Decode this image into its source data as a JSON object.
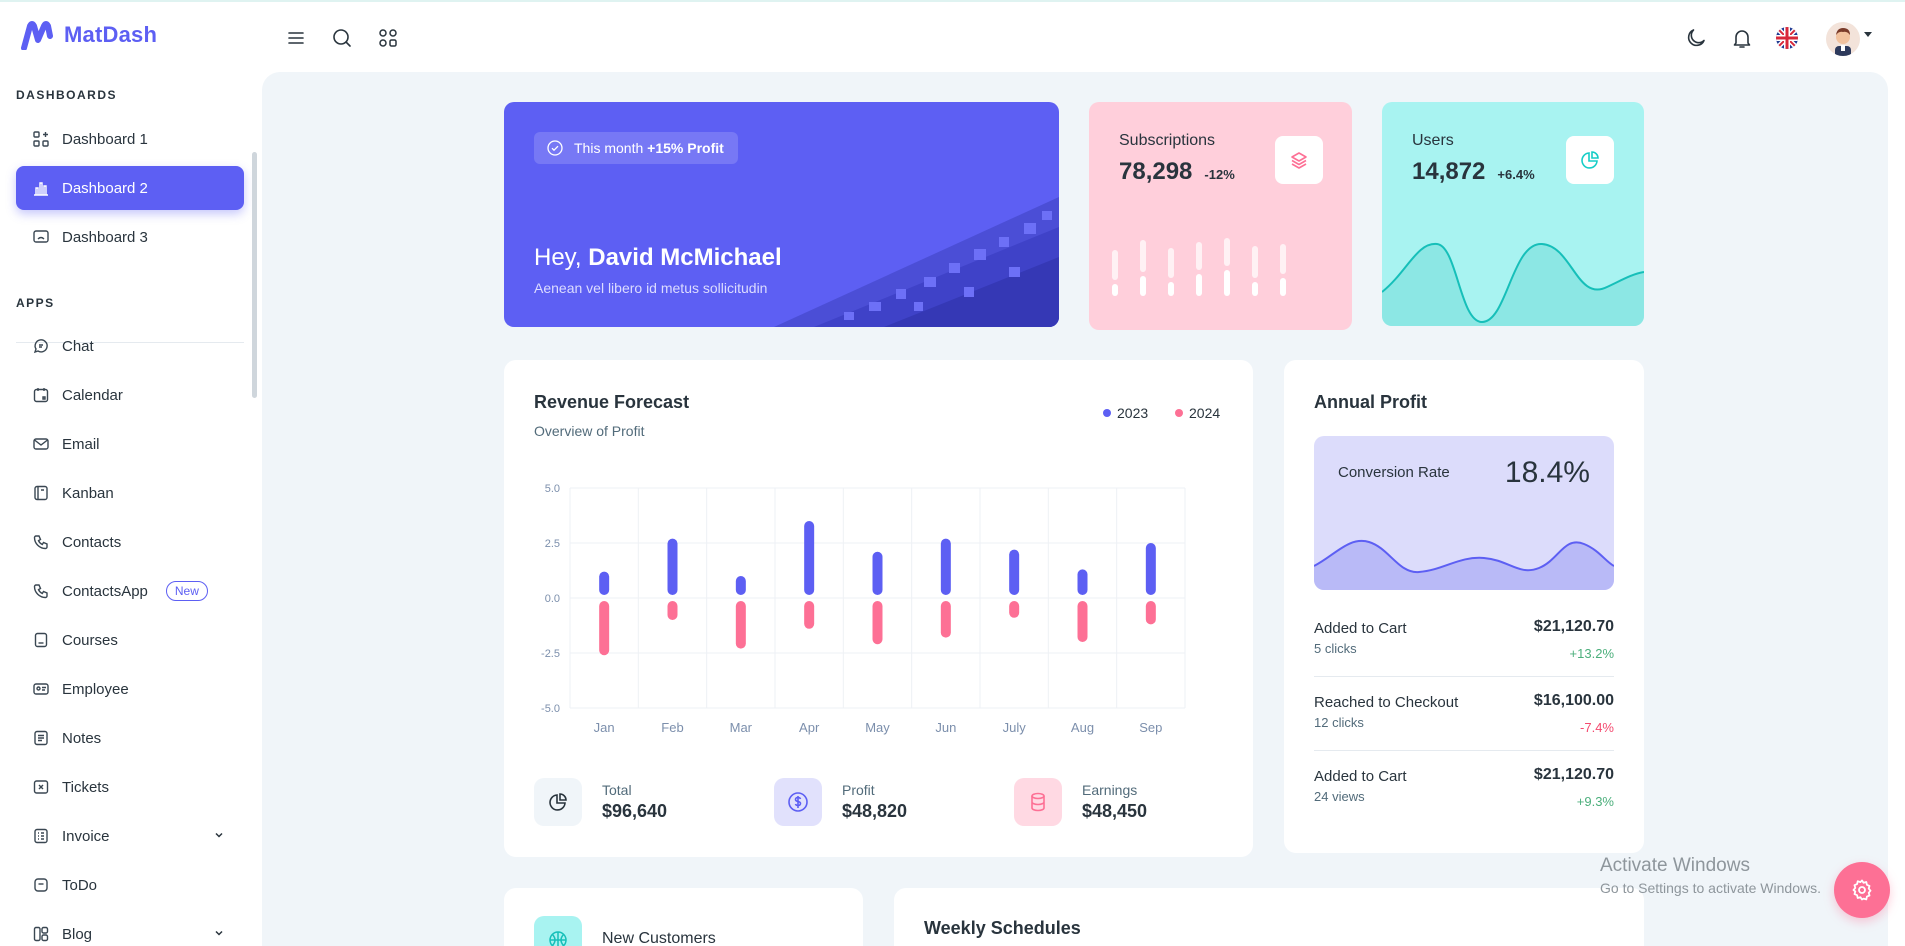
{
  "app": {
    "name": "MatDash"
  },
  "colors": {
    "primary": "#5d5ff3",
    "secondary": "#fd7095",
    "success": "#4caf7c",
    "danger": "#f44a6f",
    "subs_bg": "#ffcfdb",
    "users_bg": "#a8f3f1"
  },
  "header": {
    "icons": [
      "menu-icon",
      "search-icon",
      "apps-icon",
      "moon-icon",
      "bell-icon",
      "uk-flag-icon",
      "avatar"
    ]
  },
  "sidebar": {
    "dashboards_heading": "DASHBOARDS",
    "apps_heading": "APPS",
    "dashboards": [
      {
        "label": "Dashboard 1",
        "icon": "layout-icon"
      },
      {
        "label": "Dashboard 2",
        "icon": "chart-bar-icon",
        "active": true
      },
      {
        "label": "Dashboard 3",
        "icon": "device-desktop-icon"
      }
    ],
    "apps": [
      {
        "label": "Chat",
        "icon": "message-icon"
      },
      {
        "label": "Calendar",
        "icon": "calendar-icon"
      },
      {
        "label": "Email",
        "icon": "mail-icon"
      },
      {
        "label": "Kanban",
        "icon": "notebook-icon"
      },
      {
        "label": "Contacts",
        "icon": "phone-icon"
      },
      {
        "label": "ContactsApp",
        "icon": "phone-icon",
        "badge": "New"
      },
      {
        "label": "Courses",
        "icon": "book-icon"
      },
      {
        "label": "Employee",
        "icon": "id-badge-icon"
      },
      {
        "label": "Notes",
        "icon": "note-icon"
      },
      {
        "label": "Tickets",
        "icon": "ticket-icon"
      },
      {
        "label": "Invoice",
        "icon": "file-invoice-icon",
        "expandable": true
      },
      {
        "label": "ToDo",
        "icon": "checkbox-icon"
      },
      {
        "label": "Blog",
        "icon": "blog-icon",
        "expandable": true
      }
    ]
  },
  "welcome": {
    "pill_prefix": "This month",
    "pill_bold": "+15% Profit",
    "greeting": "Hey,",
    "name": "David McMichael",
    "subtitle": "Aenean vel libero id metus sollicitudin"
  },
  "subscriptions": {
    "title": "Subscriptions",
    "value": "78,298",
    "change": "-12%",
    "icon": "stack-icon"
  },
  "users": {
    "title": "Users",
    "value": "14,872",
    "change": "+6.4%",
    "icon": "chart-pie-icon"
  },
  "revenue": {
    "title": "Revenue Forecast",
    "subtitle": "Overview of Profit",
    "totals": [
      {
        "label": "Total",
        "value": "$96,640",
        "icon": "chart-pie-icon"
      },
      {
        "label": "Profit",
        "value": "$48,820",
        "icon": "dollar-circle-icon"
      },
      {
        "label": "Earnings",
        "value": "$48,450",
        "icon": "database-icon"
      }
    ]
  },
  "chart_data": {
    "type": "bar",
    "categories": [
      "Jan",
      "Feb",
      "Mar",
      "Apr",
      "May",
      "Jun",
      "July",
      "Aug",
      "Sep"
    ],
    "series": [
      {
        "name": "2023",
        "values": [
          1.2,
          2.7,
          1.0,
          3.5,
          2.1,
          2.7,
          2.2,
          1.3,
          2.5
        ],
        "color": "#5d5ff3"
      },
      {
        "name": "2024",
        "values": [
          -2.6,
          -1.0,
          -2.3,
          -1.4,
          -2.1,
          -1.8,
          -0.9,
          -2.0,
          -1.2
        ],
        "color": "#fd7095"
      }
    ],
    "yticks": [
      "5.0",
      "2.5",
      "0.0",
      "-2.5",
      "-5.0"
    ],
    "ylim": [
      -5,
      5
    ],
    "legend": "top-right",
    "grid": true
  },
  "annual": {
    "title": "Annual Profit",
    "conversion_label": "Conversion Rate",
    "conversion_value": "18.4%",
    "rows": [
      {
        "label": "Added to Cart",
        "sub": "5 clicks",
        "amount": "$21,120.70",
        "change": "+13.2%",
        "positive": true
      },
      {
        "label": "Reached to Checkout",
        "sub": "12 clicks",
        "amount": "$16,100.00",
        "change": "-7.4%",
        "positive": false
      },
      {
        "label": "Added to Cart",
        "sub": "24 views",
        "amount": "$21,120.70",
        "change": "+9.3%",
        "positive": true
      }
    ]
  },
  "bottom": {
    "new_customers": "New Customers",
    "weekly": "Weekly Schedules"
  },
  "watermark": {
    "line1": "Activate Windows",
    "line2": "Go to Settings to activate Windows."
  }
}
